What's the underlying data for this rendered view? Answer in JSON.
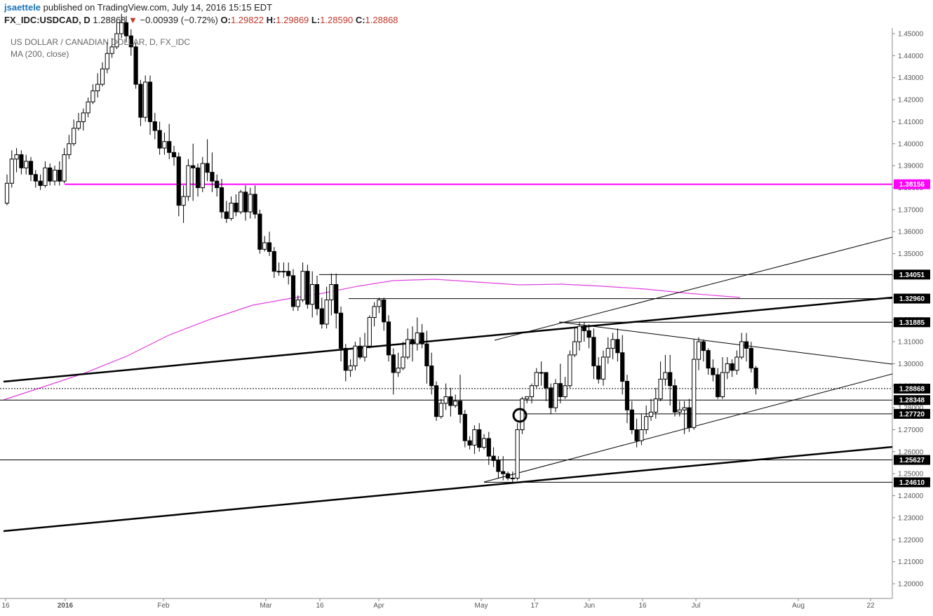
{
  "header": {
    "user": "jsaettele",
    "published": " published on TradingView.com, July 14, 2016 15:15 EDT",
    "symbol": "FX_IDC:USDCAD, D",
    "last": "1.28868",
    "arrow": "▼",
    "change": "−0.00939 (−0.72%)",
    "o_label": "O:",
    "o_value": "1.29822",
    "h_label": "H:",
    "h_value": "1.29869",
    "l_label": "L:",
    "l_value": "1.28590",
    "c_label": "C:",
    "c_value": "1.28868"
  },
  "legend": {
    "title": "US DOLLAR / CANADIAN DOLLAR, D, FX_IDC",
    "indicator": "MA (200, close)"
  },
  "colors": {
    "up_fill": "#ffffff",
    "down_fill": "#000000",
    "ma": "#e040e0",
    "magenta_level": "#ff00ff",
    "axis": "#888888"
  },
  "chart_data": {
    "type": "candlestick",
    "title": "US DOLLAR / CANADIAN DOLLAR, D, FX_IDC",
    "ylim": [
      1.195,
      1.452
    ],
    "yticks": [
      "1.45000",
      "1.44000",
      "1.43000",
      "1.42000",
      "1.41000",
      "1.40000",
      "1.39000",
      "1.38000",
      "1.37000",
      "1.36000",
      "1.35000",
      "1.34000",
      "1.33000",
      "1.32000",
      "1.31000",
      "1.30000",
      "1.29000",
      "1.28000",
      "1.27000",
      "1.26000",
      "1.25000",
      "1.24000",
      "1.23000",
      "1.22000",
      "1.21000",
      "1.20000"
    ],
    "xticks": [
      "16",
      "2016",
      "Feb",
      "Mar",
      "16",
      "Apr",
      "May",
      "17",
      "Jun",
      "16",
      "Jul",
      "Aug",
      "22"
    ],
    "price_labels": [
      {
        "text": "1.38156",
        "value": 1.38156,
        "style": "magenta"
      },
      {
        "text": "1.34051",
        "value": 1.34051,
        "style": "black"
      },
      {
        "text": "1.32960",
        "value": 1.3296,
        "style": "black"
      },
      {
        "text": "1.31885",
        "value": 1.31885,
        "style": "black"
      },
      {
        "text": "1.28868",
        "value": 1.28868,
        "style": "black"
      },
      {
        "text": "1.28348",
        "value": 1.28348,
        "style": "black"
      },
      {
        "text": "1.27720",
        "value": 1.2772,
        "style": "black"
      },
      {
        "text": "1.25627",
        "value": 1.25627,
        "style": "black"
      },
      {
        "text": "1.24610",
        "value": 1.2461,
        "style": "black"
      }
    ],
    "candles": [
      [
        1.373,
        1.382,
        1.372,
        1.386
      ],
      [
        1.382,
        1.393,
        1.38,
        1.397
      ],
      [
        1.393,
        1.395,
        1.387,
        1.398
      ],
      [
        1.395,
        1.389,
        1.386,
        1.397
      ],
      [
        1.389,
        1.392,
        1.386,
        1.395
      ],
      [
        1.392,
        1.386,
        1.383,
        1.394
      ],
      [
        1.386,
        1.383,
        1.38,
        1.388
      ],
      [
        1.383,
        1.381,
        1.379,
        1.386
      ],
      [
        1.381,
        1.389,
        1.38,
        1.392
      ],
      [
        1.389,
        1.383,
        1.381,
        1.391
      ],
      [
        1.383,
        1.388,
        1.381,
        1.39
      ],
      [
        1.388,
        1.383,
        1.381,
        1.392
      ],
      [
        1.383,
        1.395,
        1.382,
        1.398
      ],
      [
        1.395,
        1.4,
        1.393,
        1.404
      ],
      [
        1.4,
        1.407,
        1.399,
        1.411
      ],
      [
        1.407,
        1.41,
        1.406,
        1.414
      ],
      [
        1.41,
        1.414,
        1.406,
        1.416
      ],
      [
        1.414,
        1.419,
        1.412,
        1.421
      ],
      [
        1.419,
        1.424,
        1.418,
        1.427
      ],
      [
        1.424,
        1.427,
        1.421,
        1.432
      ],
      [
        1.427,
        1.434,
        1.426,
        1.437
      ],
      [
        1.434,
        1.441,
        1.432,
        1.446
      ],
      [
        1.441,
        1.444,
        1.439,
        1.448
      ],
      [
        1.444,
        1.45,
        1.443,
        1.456
      ],
      [
        1.45,
        1.455,
        1.448,
        1.459
      ],
      [
        1.455,
        1.449,
        1.446,
        1.458
      ],
      [
        1.449,
        1.444,
        1.44,
        1.452
      ],
      [
        1.444,
        1.427,
        1.425,
        1.446
      ],
      [
        1.427,
        1.412,
        1.408,
        1.429
      ],
      [
        1.412,
        1.428,
        1.41,
        1.431
      ],
      [
        1.428,
        1.41,
        1.404,
        1.431
      ],
      [
        1.41,
        1.406,
        1.402,
        1.414
      ],
      [
        1.406,
        1.398,
        1.395,
        1.41
      ],
      [
        1.398,
        1.401,
        1.395,
        1.405
      ],
      [
        1.401,
        1.396,
        1.393,
        1.409
      ],
      [
        1.396,
        1.394,
        1.39,
        1.399
      ],
      [
        1.394,
        1.372,
        1.367,
        1.396
      ],
      [
        1.372,
        1.376,
        1.364,
        1.381
      ],
      [
        1.376,
        1.39,
        1.374,
        1.393
      ],
      [
        1.39,
        1.389,
        1.374,
        1.4
      ],
      [
        1.389,
        1.38,
        1.376,
        1.391
      ],
      [
        1.38,
        1.391,
        1.378,
        1.394
      ],
      [
        1.391,
        1.387,
        1.383,
        1.402
      ],
      [
        1.387,
        1.383,
        1.378,
        1.396
      ],
      [
        1.383,
        1.38,
        1.376,
        1.386
      ],
      [
        1.38,
        1.369,
        1.366,
        1.384
      ],
      [
        1.369,
        1.366,
        1.364,
        1.374
      ],
      [
        1.366,
        1.373,
        1.365,
        1.376
      ],
      [
        1.373,
        1.369,
        1.367,
        1.377
      ],
      [
        1.369,
        1.378,
        1.368,
        1.379
      ],
      [
        1.378,
        1.369,
        1.365,
        1.381
      ],
      [
        1.369,
        1.377,
        1.366,
        1.38
      ],
      [
        1.377,
        1.368,
        1.366,
        1.381
      ],
      [
        1.368,
        1.352,
        1.35,
        1.37
      ],
      [
        1.352,
        1.355,
        1.351,
        1.358
      ],
      [
        1.355,
        1.351,
        1.349,
        1.36
      ],
      [
        1.351,
        1.342,
        1.339,
        1.353
      ],
      [
        1.342,
        1.342,
        1.34,
        1.346
      ],
      [
        1.342,
        1.342,
        1.339,
        1.346
      ],
      [
        1.342,
        1.34,
        1.336,
        1.346
      ],
      [
        1.34,
        1.326,
        1.324,
        1.343
      ],
      [
        1.326,
        1.329,
        1.324,
        1.331
      ],
      [
        1.329,
        1.342,
        1.328,
        1.346
      ],
      [
        1.342,
        1.327,
        1.325,
        1.345
      ],
      [
        1.327,
        1.336,
        1.321,
        1.342
      ],
      [
        1.336,
        1.325,
        1.322,
        1.34
      ],
      [
        1.325,
        1.318,
        1.316,
        1.33
      ],
      [
        1.318,
        1.329,
        1.316,
        1.335
      ],
      [
        1.329,
        1.336,
        1.322,
        1.341
      ],
      [
        1.336,
        1.323,
        1.316,
        1.341
      ],
      [
        1.323,
        1.307,
        1.301,
        1.326
      ],
      [
        1.307,
        1.297,
        1.292,
        1.309
      ],
      [
        1.297,
        1.299,
        1.294,
        1.302
      ],
      [
        1.299,
        1.308,
        1.297,
        1.31
      ],
      [
        1.308,
        1.303,
        1.302,
        1.312
      ],
      [
        1.303,
        1.308,
        1.301,
        1.314
      ],
      [
        1.308,
        1.321,
        1.307,
        1.322
      ],
      [
        1.321,
        1.326,
        1.317,
        1.328
      ],
      [
        1.326,
        1.329,
        1.323,
        1.33
      ],
      [
        1.329,
        1.319,
        1.315,
        1.33
      ],
      [
        1.319,
        1.304,
        1.301,
        1.322
      ],
      [
        1.304,
        1.296,
        1.286,
        1.307
      ],
      [
        1.296,
        1.298,
        1.294,
        1.305
      ],
      [
        1.298,
        1.303,
        1.297,
        1.31
      ],
      [
        1.303,
        1.311,
        1.302,
        1.316
      ],
      [
        1.311,
        1.309,
        1.301,
        1.317
      ],
      [
        1.309,
        1.314,
        1.306,
        1.321
      ],
      [
        1.314,
        1.309,
        1.307,
        1.318
      ],
      [
        1.309,
        1.299,
        1.291,
        1.315
      ],
      [
        1.299,
        1.29,
        1.286,
        1.305
      ],
      [
        1.29,
        1.276,
        1.274,
        1.292
      ],
      [
        1.276,
        1.282,
        1.275,
        1.284
      ],
      [
        1.282,
        1.285,
        1.279,
        1.291
      ],
      [
        1.285,
        1.281,
        1.276,
        1.289
      ],
      [
        1.281,
        1.283,
        1.28,
        1.286
      ],
      [
        1.283,
        1.277,
        1.273,
        1.295
      ],
      [
        1.277,
        1.265,
        1.262,
        1.279
      ],
      [
        1.265,
        1.263,
        1.261,
        1.267
      ],
      [
        1.263,
        1.27,
        1.259,
        1.272
      ],
      [
        1.27,
        1.262,
        1.26,
        1.273
      ],
      [
        1.262,
        1.266,
        1.261,
        1.268
      ],
      [
        1.266,
        1.258,
        1.254,
        1.269
      ],
      [
        1.258,
        1.256,
        1.253,
        1.262
      ],
      [
        1.256,
        1.251,
        1.248,
        1.258
      ],
      [
        1.251,
        1.25,
        1.247,
        1.258
      ],
      [
        1.25,
        1.248,
        1.247,
        1.251
      ],
      [
        1.248,
        1.248,
        1.246,
        1.251
      ],
      [
        1.248,
        1.27,
        1.247,
        1.273
      ],
      [
        1.27,
        1.284,
        1.268,
        1.285
      ],
      [
        1.284,
        1.285,
        1.282,
        1.285
      ],
      [
        1.285,
        1.29,
        1.282,
        1.291
      ],
      [
        1.29,
        1.296,
        1.289,
        1.298
      ],
      [
        1.296,
        1.296,
        1.29,
        1.301
      ],
      [
        1.296,
        1.289,
        1.283,
        1.296
      ],
      [
        1.289,
        1.28,
        1.277,
        1.291
      ],
      [
        1.28,
        1.291,
        1.278,
        1.293
      ],
      [
        1.291,
        1.285,
        1.282,
        1.3
      ],
      [
        1.285,
        1.29,
        1.284,
        1.294
      ],
      [
        1.29,
        1.304,
        1.289,
        1.306
      ],
      [
        1.304,
        1.31,
        1.303,
        1.316
      ],
      [
        1.31,
        1.317,
        1.306,
        1.319
      ],
      [
        1.317,
        1.315,
        1.31,
        1.319
      ],
      [
        1.315,
        1.312,
        1.307,
        1.318
      ],
      [
        1.312,
        1.299,
        1.293,
        1.316
      ],
      [
        1.299,
        1.293,
        1.291,
        1.303
      ],
      [
        1.293,
        1.303,
        1.29,
        1.306
      ],
      [
        1.303,
        1.307,
        1.3,
        1.312
      ],
      [
        1.307,
        1.311,
        1.302,
        1.314
      ],
      [
        1.311,
        1.305,
        1.301,
        1.316
      ],
      [
        1.305,
        1.292,
        1.286,
        1.313
      ],
      [
        1.292,
        1.279,
        1.273,
        1.295
      ],
      [
        1.279,
        1.27,
        1.268,
        1.283
      ],
      [
        1.27,
        1.265,
        1.262,
        1.275
      ],
      [
        1.265,
        1.27,
        1.263,
        1.277
      ],
      [
        1.27,
        1.276,
        1.268,
        1.281
      ],
      [
        1.276,
        1.278,
        1.274,
        1.284
      ],
      [
        1.278,
        1.284,
        1.275,
        1.289
      ],
      [
        1.284,
        1.293,
        1.283,
        1.301
      ],
      [
        1.293,
        1.296,
        1.29,
        1.304
      ],
      [
        1.296,
        1.29,
        1.281,
        1.304
      ],
      [
        1.29,
        1.278,
        1.276,
        1.293
      ],
      [
        1.278,
        1.279,
        1.276,
        1.283
      ],
      [
        1.279,
        1.28,
        1.268,
        1.283
      ],
      [
        1.28,
        1.271,
        1.269,
        1.284
      ],
      [
        1.271,
        1.302,
        1.27,
        1.311
      ],
      [
        1.302,
        1.31,
        1.297,
        1.312
      ],
      [
        1.31,
        1.306,
        1.301,
        1.311
      ],
      [
        1.306,
        1.298,
        1.295,
        1.307
      ],
      [
        1.298,
        1.295,
        1.292,
        1.302
      ],
      [
        1.295,
        1.285,
        1.284,
        1.298
      ],
      [
        1.285,
        1.296,
        1.284,
        1.303
      ],
      [
        1.296,
        1.3,
        1.293,
        1.303
      ],
      [
        1.3,
        1.297,
        1.294,
        1.302
      ],
      [
        1.297,
        1.303,
        1.295,
        1.306
      ],
      [
        1.303,
        1.31,
        1.302,
        1.314
      ],
      [
        1.31,
        1.307,
        1.301,
        1.314
      ],
      [
        1.307,
        1.298,
        1.296,
        1.31
      ],
      [
        1.298,
        1.289,
        1.286,
        1.299
      ]
    ]
  }
}
